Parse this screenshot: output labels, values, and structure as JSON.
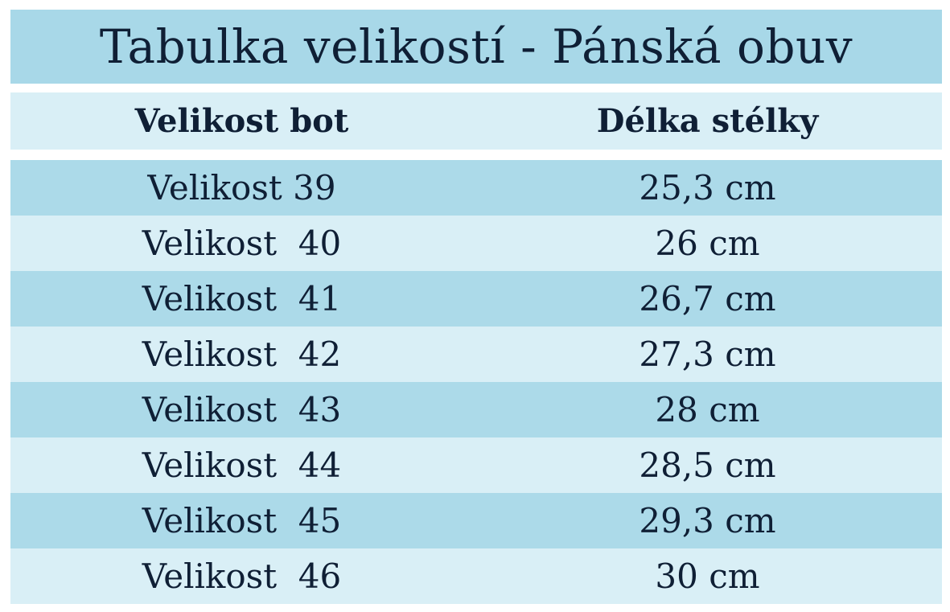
{
  "title": "Tabulka velikostí - Pánská obuv",
  "headers": {
    "size": "Velikost bot",
    "length": "Délka stélky"
  },
  "rows": [
    {
      "size": "Velikost 39",
      "length": "25,3 cm"
    },
    {
      "size": "Velikost  40",
      "length": "26 cm"
    },
    {
      "size": "Velikost  41",
      "length": "26,7 cm"
    },
    {
      "size": "Velikost  42",
      "length": "27,3 cm"
    },
    {
      "size": "Velikost  43",
      "length": "28 cm"
    },
    {
      "size": "Velikost  44",
      "length": "28,5 cm"
    },
    {
      "size": "Velikost  45",
      "length": "29,3 cm"
    },
    {
      "size": "Velikost  46",
      "length": "30 cm"
    }
  ],
  "colors": {
    "dark_band": "#acdae9",
    "light_band": "#d9eff6",
    "text": "#0f1f35"
  }
}
